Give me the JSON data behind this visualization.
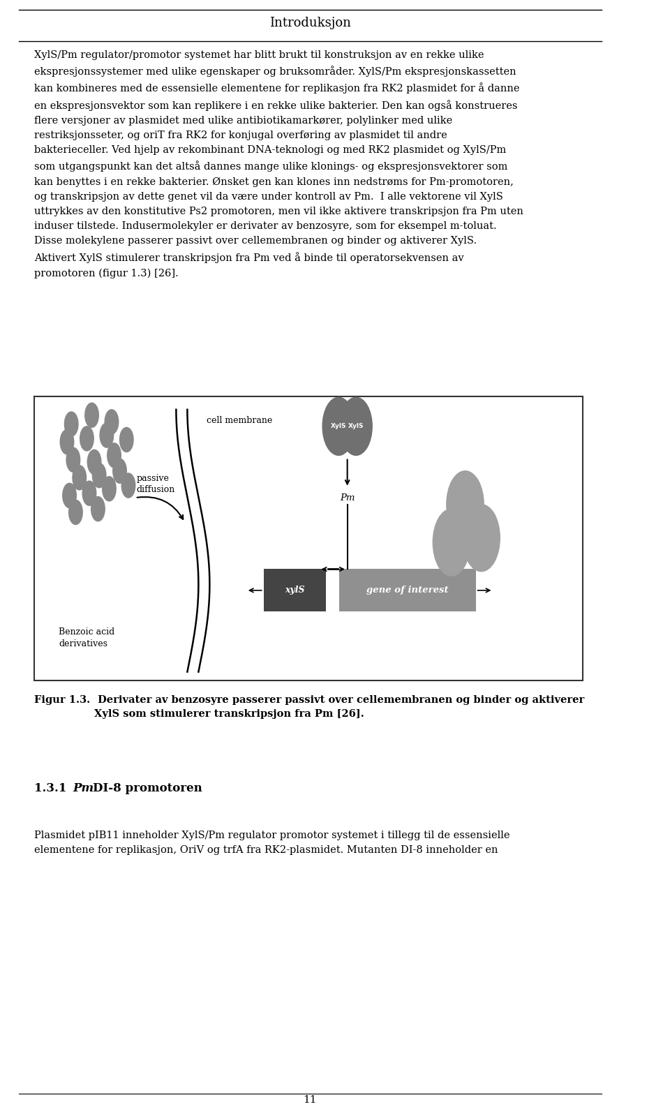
{
  "title": "Introduksjon",
  "bg_color": "#ffffff",
  "text_color": "#1a1a1a",
  "page_number": "11",
  "main_text_lines": [
    "XylS/Pm regulator/promotor systemet har blitt brukt til konstruksjon av en rekke ulike",
    "ekspresjonssystemer med ulike egenskaper og bruksområder. XylS/Pm ekspresjonskassetten",
    "kan kombineres med de essensielle elementene for replikasjon fra RK2 plasmidet for å danne",
    "en ekspresjonsvektor som kan replikere i en rekke ulike bakterier. Den kan også konstrueres",
    "flere versjoner av plasmidet med ulike antibiotikamarkører, polylinker med ulike",
    "restriksjonsseter, og oriT fra RK2 for konjugal overføring av plasmidet til andre",
    "bakterieceller. Ved hjelp av rekombinant DNA-teknologi og med RK2 plasmidet og XylS/Pm",
    "som utgangspunkt kan det altså dannes mange ulike klonings- og ekspresjonsvektorer som",
    "kan benyttes i en rekke bakterier. Ønsket gen kan klones inn nedstrøms for Pm-promotoren,",
    "og transkripsjon av dette genet vil da være under kontroll av Pm.  I alle vektorene vil XylS",
    "uttrykkes av den konstitutive Ps2 promotoren, men vil ikke aktivere transkripsjon fra Pm uten",
    "induser tilstede. Indusermolekyler er derivater av benzosyre, som for eksempel m-toluat.",
    "Disse molekylene passerer passivt over cellemembranen og binder og aktiverer XylS.",
    "Aktivert XylS stimulerer transkripsjon fra Pm ved å binde til operatorsekvensen av",
    "promotoren (figur 1.3) [26]."
  ],
  "caption_label": "Figur 1.3.",
  "caption_text_line1": " Derivater av benzosyre passerer passivt over cellemembranen og binder og aktiverer",
  "caption_text_line2": "XylS som stimulerer transkripsjon fra Pm [26].",
  "section_title_num": "1.3.1 ",
  "section_title_italic": "Pm",
  "section_title_rest": "DI-8 promotoren",
  "section_body_lines": [
    "Plasmidet pIB11 inneholder XylS/Pm regulator promotor systemet i tillegg til de essensielle",
    "elementene for replikasjon, OriV og trfA fra RK2-plasmidet. Mutanten DI-8 inneholder en"
  ],
  "diagram": {
    "cell_membrane_label": "cell membrane",
    "passive_diffusion_label": "passive\ndiffusion",
    "benzoic_acid_label": "Benzoic acid\nderivatives",
    "xyls_gene_label": "xylS",
    "gene_label": "gene of interest",
    "pm_label": "Pm",
    "xyls_protein_label": "XylS",
    "gray_color": "#808080",
    "dark_gray": "#444444",
    "box_border": "#333333",
    "dot_color": "#888888",
    "protein_color": "#707070",
    "product_color": "#a0a0a0",
    "gene_box_color": "#909090"
  }
}
